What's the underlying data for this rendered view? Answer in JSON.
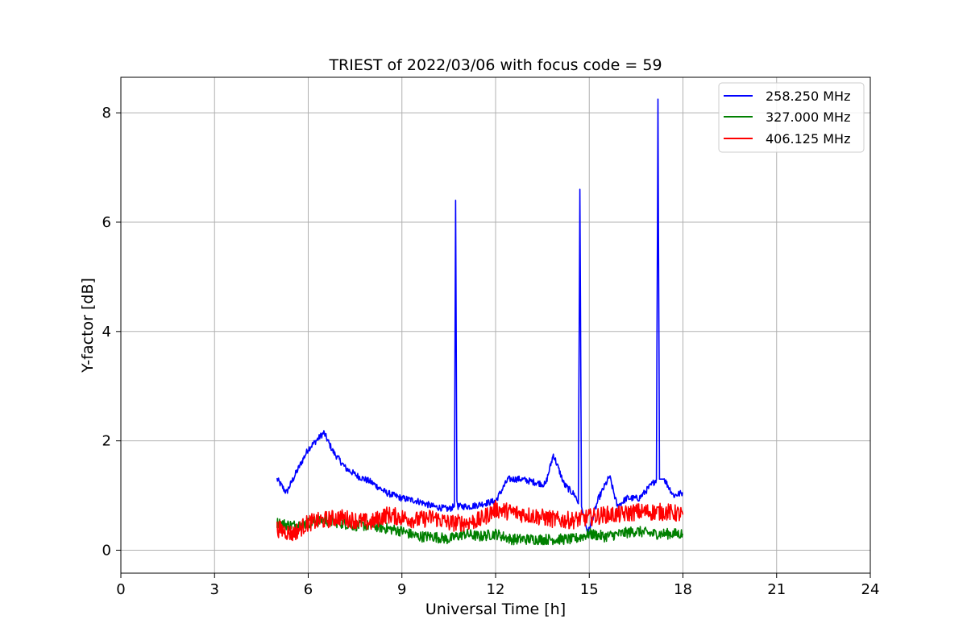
{
  "chart_data": {
    "type": "line",
    "title": "TRIEST of 2022/03/06 with focus code = 59",
    "xlabel": "Universal Time [h]",
    "ylabel": "Y-factor [dB]",
    "xlim": [
      0,
      24
    ],
    "ylim": [
      -0.42,
      8.65
    ],
    "xticks": [
      0,
      3,
      6,
      9,
      12,
      15,
      18,
      21,
      24
    ],
    "yticks": [
      0,
      2,
      4,
      6,
      8
    ],
    "grid": true,
    "legend_position": "top-right",
    "series": [
      {
        "name": "258.250 MHz",
        "color": "#0000ff",
        "x": [
          5.0,
          5.3,
          5.6,
          6.0,
          6.5,
          6.8,
          7.2,
          7.6,
          8.0,
          8.5,
          9.0,
          9.5,
          10.0,
          10.5,
          10.68,
          10.72,
          10.76,
          10.8,
          11.2,
          11.6,
          12.0,
          12.4,
          12.8,
          13.2,
          13.6,
          13.85,
          14.2,
          14.55,
          14.65,
          14.7,
          14.75,
          14.95,
          15.3,
          15.65,
          15.9,
          16.2,
          16.6,
          17.0,
          17.15,
          17.2,
          17.25,
          17.4,
          17.7,
          18.0
        ],
        "y": [
          1.3,
          1.05,
          1.4,
          1.85,
          2.15,
          1.8,
          1.5,
          1.35,
          1.25,
          1.05,
          0.95,
          0.9,
          0.8,
          0.75,
          0.8,
          6.4,
          0.9,
          0.8,
          0.8,
          0.85,
          0.9,
          1.3,
          1.3,
          1.25,
          1.2,
          1.75,
          1.2,
          1.0,
          0.85,
          6.6,
          0.8,
          0.3,
          0.95,
          1.35,
          0.8,
          0.95,
          0.95,
          1.2,
          1.3,
          8.25,
          1.3,
          1.3,
          1.0,
          1.05
        ]
      },
      {
        "name": "327.000 MHz",
        "color": "#008000",
        "x": [
          5.0,
          5.5,
          6.0,
          6.5,
          7.0,
          7.5,
          8.0,
          8.5,
          9.0,
          9.5,
          10.0,
          10.5,
          11.0,
          11.5,
          12.0,
          12.5,
          13.0,
          13.5,
          14.0,
          14.5,
          15.0,
          15.5,
          16.0,
          16.5,
          17.0,
          17.5,
          18.0
        ],
        "y": [
          0.5,
          0.45,
          0.5,
          0.55,
          0.5,
          0.45,
          0.45,
          0.4,
          0.35,
          0.25,
          0.25,
          0.2,
          0.3,
          0.25,
          0.3,
          0.2,
          0.2,
          0.2,
          0.2,
          0.2,
          0.3,
          0.25,
          0.3,
          0.35,
          0.3,
          0.3,
          0.3
        ]
      },
      {
        "name": "406.125 MHz",
        "color": "#ff0000",
        "x": [
          5.0,
          5.5,
          6.0,
          6.5,
          7.0,
          7.5,
          8.0,
          8.5,
          9.0,
          9.5,
          10.0,
          10.5,
          11.0,
          11.5,
          12.0,
          12.5,
          13.0,
          13.5,
          14.0,
          14.5,
          15.0,
          15.5,
          16.0,
          16.5,
          17.0,
          17.5,
          18.0
        ],
        "y": [
          0.4,
          0.3,
          0.5,
          0.55,
          0.6,
          0.55,
          0.5,
          0.65,
          0.6,
          0.55,
          0.6,
          0.5,
          0.5,
          0.55,
          0.75,
          0.7,
          0.65,
          0.6,
          0.55,
          0.55,
          0.6,
          0.65,
          0.65,
          0.7,
          0.7,
          0.7,
          0.65
        ]
      }
    ]
  }
}
